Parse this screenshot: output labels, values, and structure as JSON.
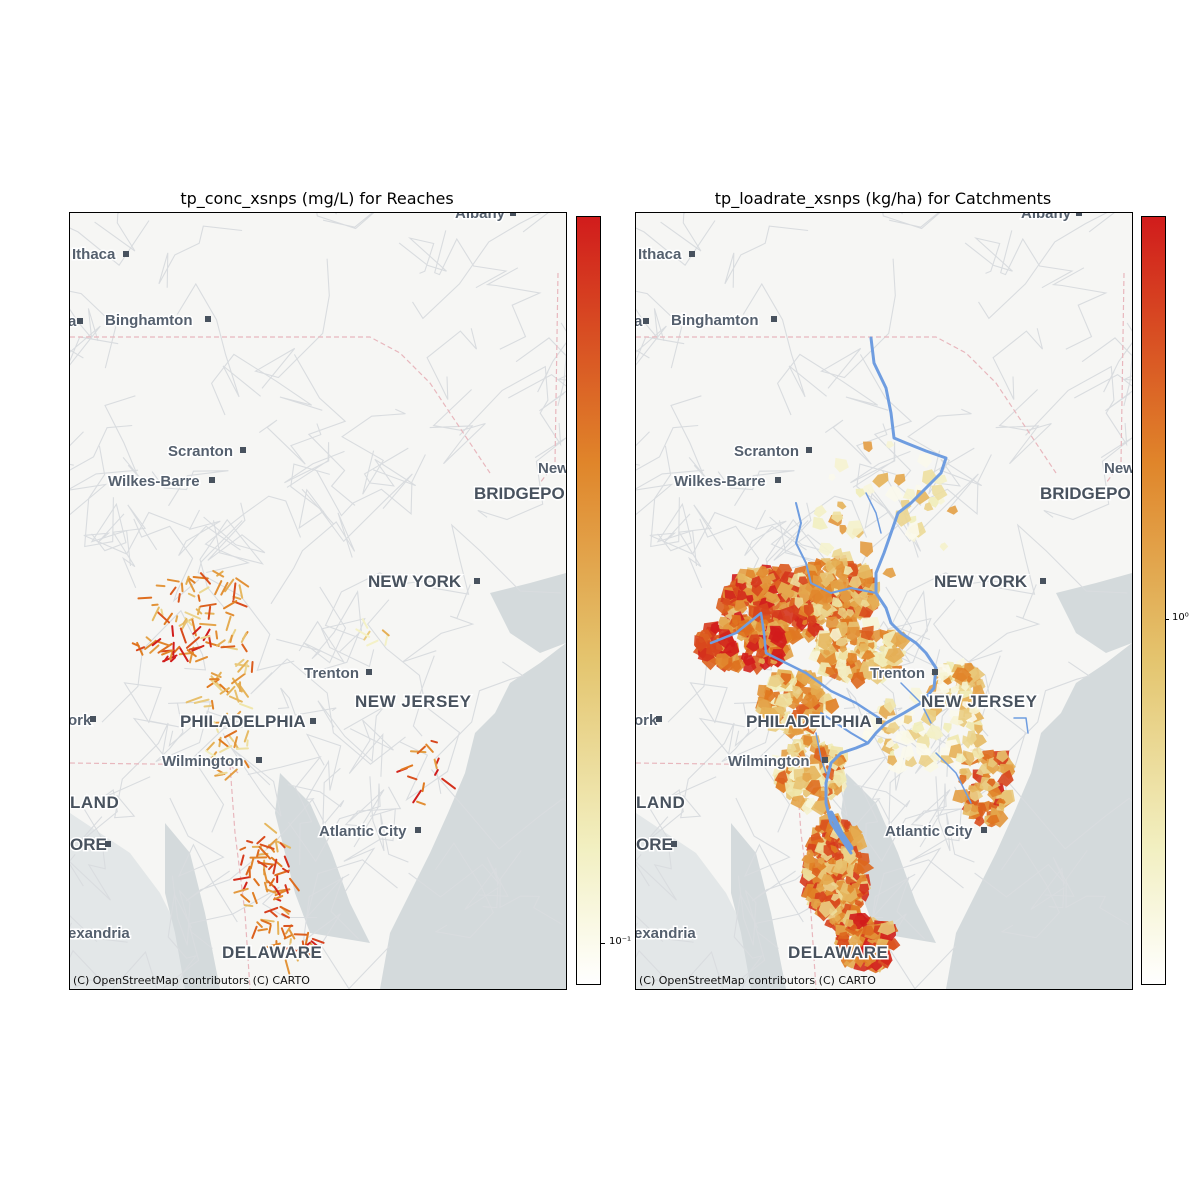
{
  "panels": [
    {
      "title": "tp_conc_xsnps (mg/L) for Reaches",
      "attribution": "(C) OpenStreetMap contributors (C) CARTO",
      "colorbar": {
        "ticks": [
          "10⁻¹"
        ],
        "cmap_low": "#ffffff",
        "cmap_mid": "#e07a1f",
        "cmap_high": "#d11c1c"
      },
      "layer": "reaches"
    },
    {
      "title": "tp_loadrate_xsnps (kg/ha) for Catchments",
      "attribution": "(C) OpenStreetMap contributors (C) CARTO",
      "colorbar": {
        "ticks": [
          "10⁰"
        ],
        "cmap_low": "#ffffff",
        "cmap_mid": "#e07a1f",
        "cmap_high": "#d11c1c"
      },
      "layer": "catchments",
      "river_color": "#6f9de0"
    }
  ],
  "map_labels": {
    "albany": "Albany",
    "ithaca": "Ithaca",
    "binghamton": "Binghamton",
    "scranton": "Scranton",
    "wilkes_barre": "Wilkes-Barre",
    "new_haven_partial": "New",
    "bridgeport_partial": "BRIDGEPO",
    "new_york": "NEW YORK",
    "trenton": "Trenton",
    "new_jersey": "NEW JERSEY",
    "philadelphia": "PHILADELPHIA",
    "york_partial": "ork",
    "wilmington": "Wilmington",
    "maryland_partial": "LAND",
    "baltimore_partial": "ORE",
    "atlantic_city": "Atlantic City",
    "alexandria_partial": "exandria",
    "delaware": "DELAWARE",
    "left_edge_partial": "a"
  },
  "colors": {
    "land": "#f6f6f4",
    "water": "#d4dadc",
    "roads": "#d9dcdf",
    "borders": "#e8b7bd"
  }
}
